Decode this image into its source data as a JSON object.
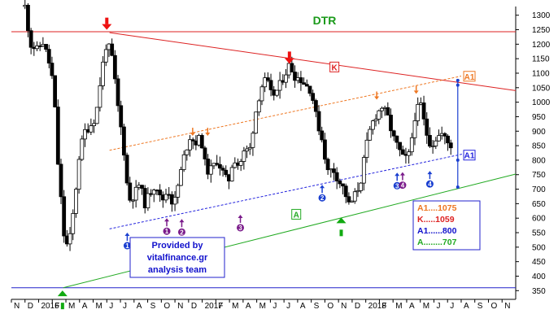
{
  "chart_data": {
    "type": "candlestick",
    "title": "DTR",
    "credit": [
      "Provided by",
      "vitalfinance.gr",
      "analysis team"
    ],
    "ylim": [
      320,
      1330
    ],
    "y_ticks": [
      350,
      400,
      450,
      500,
      550,
      600,
      650,
      700,
      750,
      800,
      850,
      900,
      950,
      1000,
      1050,
      1100,
      1150,
      1200,
      1250,
      1300
    ],
    "x_months": [
      "N",
      "D",
      "2016",
      "F",
      "M",
      "A",
      "M",
      "J",
      "J",
      "A",
      "S",
      "O",
      "N",
      "D",
      "2017",
      "F",
      "M",
      "A",
      "M",
      "J",
      "J",
      "A",
      "S",
      "O",
      "N",
      "D",
      "2018",
      "F",
      "M",
      "A",
      "M",
      "J",
      "J",
      "A",
      "S",
      "O",
      "N"
    ],
    "x_range": [
      0,
      37
    ],
    "grid": false,
    "price_anchors": [
      [
        1.0,
        1330
      ],
      [
        1.4,
        1200
      ],
      [
        1.9,
        1180
      ],
      [
        2.3,
        1210
      ],
      [
        2.7,
        1150
      ],
      [
        3.1,
        1060
      ],
      [
        3.4,
        800
      ],
      [
        3.9,
        520
      ],
      [
        4.2,
        500
      ],
      [
        4.6,
        640
      ],
      [
        5.0,
        830
      ],
      [
        5.4,
        900
      ],
      [
        5.8,
        920
      ],
      [
        6.2,
        950
      ],
      [
        6.6,
        1100
      ],
      [
        7.0,
        1210
      ],
      [
        7.4,
        1150
      ],
      [
        7.8,
        990
      ],
      [
        8.2,
        860
      ],
      [
        8.6,
        660
      ],
      [
        9.0,
        680
      ],
      [
        9.4,
        720
      ],
      [
        9.8,
        650
      ],
      [
        10.2,
        690
      ],
      [
        10.6,
        720
      ],
      [
        11.0,
        655
      ],
      [
        11.5,
        700
      ],
      [
        11.9,
        640
      ],
      [
        12.3,
        730
      ],
      [
        12.7,
        820
      ],
      [
        13.1,
        880
      ],
      [
        13.5,
        860
      ],
      [
        13.9,
        880
      ],
      [
        14.3,
        760
      ],
      [
        14.7,
        770
      ],
      [
        15.1,
        800
      ],
      [
        15.5,
        760
      ],
      [
        15.9,
        720
      ],
      [
        16.3,
        810
      ],
      [
        16.7,
        780
      ],
      [
        17.1,
        830
      ],
      [
        17.5,
        840
      ],
      [
        17.9,
        960
      ],
      [
        18.3,
        1050
      ],
      [
        18.7,
        1080
      ],
      [
        19.1,
        1020
      ],
      [
        19.5,
        1040
      ],
      [
        19.9,
        1080
      ],
      [
        20.4,
        1130
      ],
      [
        20.8,
        1090
      ],
      [
        21.2,
        1080
      ],
      [
        21.6,
        1060
      ],
      [
        22.0,
        1040
      ],
      [
        22.4,
        940
      ],
      [
        22.8,
        870
      ],
      [
        23.2,
        760
      ],
      [
        23.6,
        770
      ],
      [
        24.0,
        730
      ],
      [
        24.4,
        700
      ],
      [
        24.8,
        640
      ],
      [
        25.2,
        680
      ],
      [
        25.6,
        720
      ],
      [
        26.0,
        840
      ],
      [
        26.4,
        920
      ],
      [
        26.8,
        960
      ],
      [
        27.2,
        985
      ],
      [
        27.6,
        950
      ],
      [
        28.0,
        880
      ],
      [
        28.4,
        840
      ],
      [
        28.8,
        800
      ],
      [
        29.2,
        820
      ],
      [
        29.6,
        950
      ],
      [
        30.0,
        1000
      ],
      [
        30.4,
        900
      ],
      [
        30.8,
        850
      ],
      [
        31.2,
        880
      ],
      [
        31.6,
        890
      ],
      [
        32.0,
        860
      ],
      [
        32.4,
        845
      ]
    ],
    "annotations": {
      "horizontal_lines": [
        {
          "name": "top-resistance-line",
          "y": 1243,
          "color": "#dd2222"
        },
        {
          "name": "bottom-support-line",
          "y": 360,
          "color": "#2222cc"
        }
      ],
      "trend_lines": [
        {
          "name": "K",
          "from": [
            7.2,
            1240
          ],
          "to": [
            37,
            1040
          ],
          "color": "#dd2222",
          "style": "solid"
        },
        {
          "name": "A",
          "from": [
            3.8,
            360
          ],
          "to": [
            37,
            752
          ],
          "color": "#22aa22",
          "style": "solid"
        },
        {
          "name": "A1-lower",
          "from": [
            7.2,
            563
          ],
          "to": [
            33.5,
            825
          ],
          "color": "#2222dd",
          "style": "dashed"
        },
        {
          "name": "A1-upper",
          "from": [
            7.2,
            834
          ],
          "to": [
            33.0,
            1090
          ],
          "color": "#ee7722",
          "style": "dashed"
        }
      ],
      "labels": [
        {
          "text": "K",
          "x": 23.7,
          "y": 1120,
          "color": "#dd2222"
        },
        {
          "text": "A",
          "x": 20.9,
          "y": 612,
          "color": "#22aa22"
        },
        {
          "text": "A1",
          "x": 33.6,
          "y": 1088,
          "color": "#ee7722"
        },
        {
          "text": "A1",
          "x": 33.6,
          "y": 816,
          "color": "#2222dd"
        }
      ],
      "targets_legend": [
        {
          "label": "A1....1075",
          "color": "#ee7722"
        },
        {
          "label": "K.....1059",
          "color": "#dd2222"
        },
        {
          "label": "A1......800",
          "color": "#1111cc"
        },
        {
          "label": "A........707",
          "color": "#22aa22"
        }
      ],
      "target_points": [
        1075,
        1059,
        800,
        707
      ],
      "target_x": 32.75,
      "big_arrows": [
        {
          "dir": "down",
          "x": 7.0,
          "y": 1272,
          "color": "#ee1111"
        },
        {
          "dir": "down",
          "x": 20.4,
          "y": 1155,
          "color": "#ee1111"
        },
        {
          "dir": "up",
          "x": 3.75,
          "y": 328,
          "color": "#11aa11"
        },
        {
          "dir": "up",
          "x": 24.2,
          "y": 580,
          "color": "#11aa11"
        }
      ],
      "small_arrows": [
        {
          "x": 13.3,
          "y": 895,
          "color": "#ee7722"
        },
        {
          "x": 14.4,
          "y": 895,
          "color": "#ee7722"
        },
        {
          "x": 26.8,
          "y": 1020,
          "color": "#ee7722"
        },
        {
          "x": 29.7,
          "y": 1040,
          "color": "#ee7722"
        }
      ],
      "numbered_markers": [
        {
          "n": "1",
          "x": 8.5,
          "y": 505,
          "color": "#1a3fd0"
        },
        {
          "n": "1",
          "x": 11.4,
          "y": 555,
          "color": "#7a1a8a"
        },
        {
          "n": "2",
          "x": 12.5,
          "y": 552,
          "color": "#7a1a8a"
        },
        {
          "n": "3",
          "x": 16.8,
          "y": 567,
          "color": "#7a1a8a"
        },
        {
          "n": "2",
          "x": 22.8,
          "y": 670,
          "color": "#1a3fd0"
        },
        {
          "n": "3",
          "x": 28.3,
          "y": 712,
          "color": "#1a3fd0"
        },
        {
          "n": "4",
          "x": 28.7,
          "y": 714,
          "color": "#7a1a8a"
        },
        {
          "n": "4",
          "x": 30.7,
          "y": 718,
          "color": "#1a3fd0"
        }
      ]
    }
  }
}
